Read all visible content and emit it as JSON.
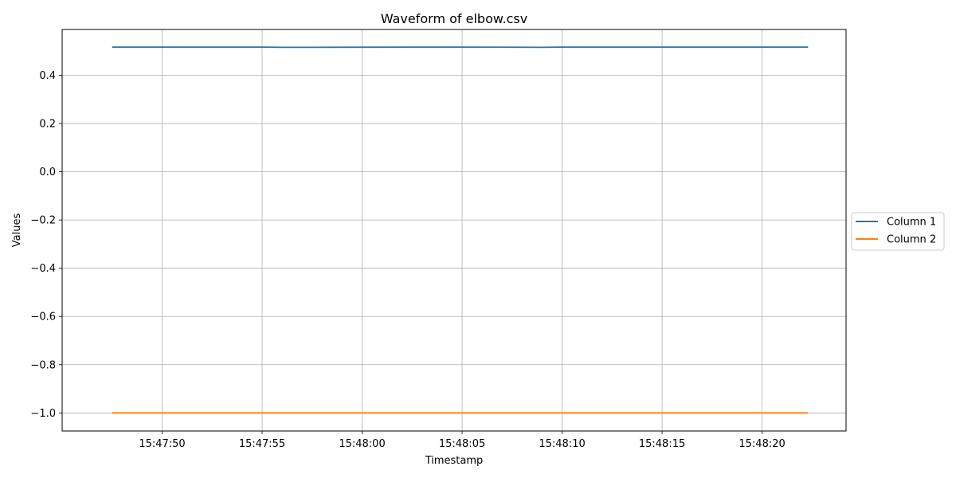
{
  "chart_data": {
    "type": "line",
    "title": "Waveform of elbow.csv",
    "xlabel": "Timestamp",
    "ylabel": "Values",
    "x_range": [
      "15:47:47.5",
      "15:48:22.3"
    ],
    "xlim": [
      "15:47:45.0",
      "15:48:24.2"
    ],
    "ylim": [
      -1.075,
      0.59
    ],
    "x_ticks": [
      "15:47:50",
      "15:47:55",
      "15:48:00",
      "15:48:05",
      "15:48:10",
      "15:48:15",
      "15:48:20"
    ],
    "y_ticks": [
      "0.4",
      "0.2",
      "0.0",
      "−0.2",
      "−0.4",
      "−0.6",
      "−0.8",
      "−1.0"
    ],
    "y_tick_values": [
      0.4,
      0.2,
      0.0,
      -0.2,
      -0.4,
      -0.6,
      -0.8,
      -1.0
    ],
    "grid": true,
    "legend_position": "center-right, outside plot",
    "series": [
      {
        "name": "Column 1",
        "color": "#1f77b4",
        "x": [
          "15:47:47.5",
          "15:47:55.0",
          "15:47:56.0",
          "15:48:05.0",
          "15:48:09.0",
          "15:48:10.0",
          "15:48:15.0",
          "15:48:20.0",
          "15:48:22.3"
        ],
        "values": [
          0.517,
          0.517,
          0.516,
          0.517,
          0.516,
          0.517,
          0.517,
          0.517,
          0.517
        ]
      },
      {
        "name": "Column 2",
        "color": "#ff7f0e",
        "x": [
          "15:47:47.5",
          "15:48:22.3"
        ],
        "values": [
          -1.0,
          -1.0
        ]
      }
    ]
  }
}
